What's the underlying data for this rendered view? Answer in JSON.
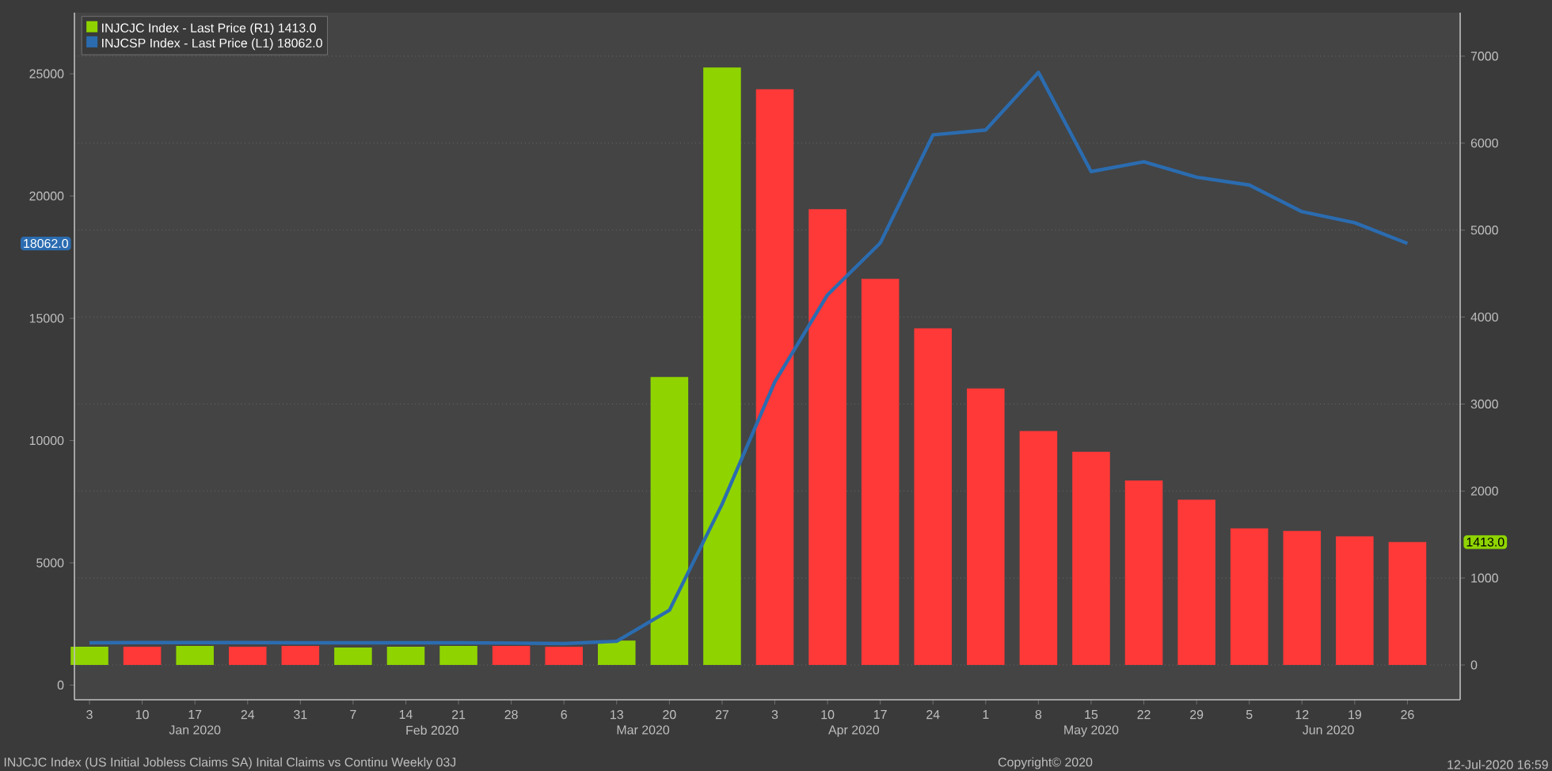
{
  "chart_data": {
    "type": "bar",
    "x": [
      "2020-01-03",
      "2020-01-10",
      "2020-01-17",
      "2020-01-24",
      "2020-01-31",
      "2020-02-07",
      "2020-02-14",
      "2020-02-21",
      "2020-02-28",
      "2020-03-06",
      "2020-03-13",
      "2020-03-20",
      "2020-03-27",
      "2020-04-03",
      "2020-04-10",
      "2020-04-17",
      "2020-04-24",
      "2020-05-01",
      "2020-05-08",
      "2020-05-15",
      "2020-05-22",
      "2020-05-29",
      "2020-06-05",
      "2020-06-12",
      "2020-06-19",
      "2020-06-26"
    ],
    "series": [
      {
        "name": "INJCJC Index - Last Price (R1) 1413.0",
        "axis": "y2",
        "color": "#8fd400",
        "colors": [
          "#8fd400",
          "#ff3838",
          "#8fd400",
          "#ff3838",
          "#ff3838",
          "#8fd400",
          "#8fd400",
          "#8fd400",
          "#ff3838",
          "#ff3838",
          "#8fd400",
          "#8fd400",
          "#8fd400",
          "#ff3838",
          "#ff3838",
          "#ff3838",
          "#ff3838",
          "#ff3838",
          "#ff3838",
          "#ff3838",
          "#ff3838",
          "#ff3838",
          "#ff3838",
          "#ff3838",
          "#ff3838",
          "#ff3838"
        ],
        "values": [
          210,
          210,
          220,
          210,
          220,
          200,
          210,
          220,
          220,
          210,
          280,
          3310,
          6870,
          6620,
          5240,
          4440,
          3870,
          3180,
          2690,
          2450,
          2120,
          1900,
          1570,
          1540,
          1480,
          1413
        ]
      },
      {
        "name": "INJCSP Index - Last Price (L1) 18062.0",
        "type": "line",
        "color": "#2b6cb0",
        "values": [
          1730,
          1740,
          1740,
          1740,
          1730,
          1730,
          1730,
          1730,
          1720,
          1700,
          1790,
          3060,
          7400,
          12400,
          15960,
          18080,
          22500,
          22700,
          25060,
          21000,
          21400,
          20770,
          20450,
          19360,
          18910,
          18062
        ]
      }
    ],
    "xlim": [
      "2020-01-01",
      "2020-07-03"
    ],
    "xticks": [
      {
        "value": "2020-01-03",
        "label": "3"
      },
      {
        "value": "2020-01-10",
        "label": "10"
      },
      {
        "value": "2020-01-17",
        "label": "17"
      },
      {
        "value": "2020-01-24",
        "label": "24"
      },
      {
        "value": "2020-01-31",
        "label": "31"
      },
      {
        "value": "2020-02-07",
        "label": "7"
      },
      {
        "value": "2020-02-14",
        "label": "14"
      },
      {
        "value": "2020-02-21",
        "label": "21"
      },
      {
        "value": "2020-02-28",
        "label": "28"
      },
      {
        "value": "2020-03-06",
        "label": "6"
      },
      {
        "value": "2020-03-13",
        "label": "13"
      },
      {
        "value": "2020-03-20",
        "label": "20"
      },
      {
        "value": "2020-03-27",
        "label": "27"
      },
      {
        "value": "2020-04-03",
        "label": "3"
      },
      {
        "value": "2020-04-10",
        "label": "10"
      },
      {
        "value": "2020-04-17",
        "label": "17"
      },
      {
        "value": "2020-04-24",
        "label": "24"
      },
      {
        "value": "2020-05-01",
        "label": "1"
      },
      {
        "value": "2020-05-08",
        "label": "8"
      },
      {
        "value": "2020-05-15",
        "label": "15"
      },
      {
        "value": "2020-05-22",
        "label": "22"
      },
      {
        "value": "2020-05-29",
        "label": "29"
      },
      {
        "value": "2020-06-05",
        "label": "5"
      },
      {
        "value": "2020-06-12",
        "label": "12"
      },
      {
        "value": "2020-06-19",
        "label": "19"
      },
      {
        "value": "2020-06-26",
        "label": "26"
      }
    ],
    "ylim": [
      -600,
      27500
    ],
    "yticks": [
      0,
      5000,
      10000,
      15000,
      20000,
      25000
    ],
    "y2lim": [
      -400,
      7500
    ],
    "y2ticks": [
      0,
      1000,
      2000,
      3000,
      4000,
      5000,
      6000,
      7000
    ],
    "grid": "y",
    "legend": "top left",
    "annotations": [
      "Jan 2020",
      "Feb 2020",
      "Mar 2020",
      "Apr 2020",
      "May 2020",
      "Jun 2020",
      "INJCJC Index (US Initial Jobless Claims SA) Inital Claims vs Continu  Weekly 03J",
      "Copyright© 2020",
      "12-Jul-2020 16:59",
      "1413.0",
      "18062.0"
    ]
  }
}
